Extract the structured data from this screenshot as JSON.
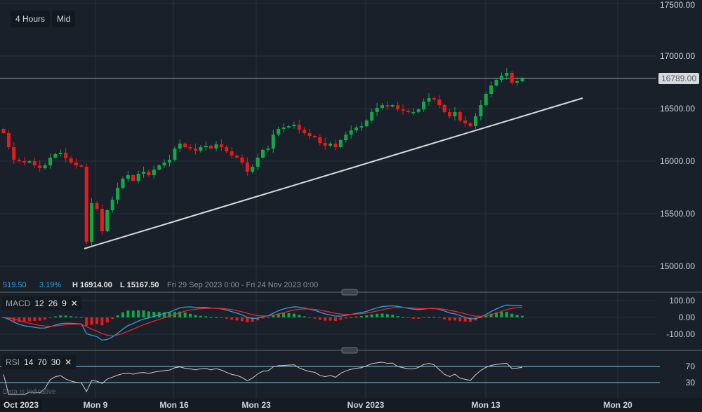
{
  "toolbar": {
    "timeframe": "4 Hours",
    "price_type": "Mid"
  },
  "info_bar": {
    "change": "519.50",
    "change_pct": "3.19%",
    "high": "H 16914.00",
    "low": "L 15167.50",
    "range": "Fri 29 Sep 2023 0:00 - Fri 24 Nov 2023 0:00"
  },
  "colors": {
    "up": "#12a84a",
    "down": "#ea1a1a",
    "macd_line": "#2f9fd8",
    "signal_line": "#e8262e",
    "rsi_line": "#c9cdd1",
    "trendline": "#d8dadd",
    "background": "#19202a"
  },
  "current_price": "16789.00",
  "macd": {
    "label": "MACD",
    "fast": "12",
    "slow": "26",
    "signal": "9"
  },
  "rsi": {
    "label": "RSI",
    "period": "14",
    "upper": "70",
    "lower": "30"
  },
  "footer_note": "Data is indicative",
  "chart_data": {
    "type": "candlestick",
    "price_axis": {
      "ticks": [
        "17500.00",
        "17000.00",
        "16500.00",
        "16000.00",
        "15500.00",
        "15000.00"
      ],
      "range": [
        14820,
        17550
      ]
    },
    "macd_axis": {
      "ticks": [
        "100.00",
        "0.00",
        "-100.00"
      ]
    },
    "rsi_axis": {
      "ticks": [
        "70",
        "30"
      ]
    },
    "x_ticks": [
      "Oct 2023",
      "Mon 9",
      "Mon 16",
      "Mon 23",
      "Nov 2023",
      "Mon 13",
      "Mon 20"
    ],
    "trendline": {
      "from": 15167.5,
      "to": 16600
    },
    "closes": [
      16267,
      16133,
      16013,
      16000,
      15987,
      16000,
      15960,
      15933,
      15960,
      16033,
      16067,
      16080,
      16027,
      15987,
      15960,
      15947,
      15233,
      15600,
      15547,
      15333,
      15533,
      15633,
      15747,
      15833,
      15867,
      15813,
      15880,
      15900,
      15867,
      15920,
      15960,
      15987,
      16013,
      16120,
      16167,
      16133,
      16120,
      16100,
      16133,
      16147,
      16120,
      16160,
      16133,
      16093,
      16053,
      16033,
      15987,
      15900,
      15947,
      16033,
      16107,
      16120,
      16253,
      16307,
      16320,
      16333,
      16347,
      16300,
      16267,
      16240,
      16227,
      16173,
      16147,
      16167,
      16133,
      16200,
      16253,
      16293,
      16320,
      16333,
      16387,
      16467,
      16507,
      16533,
      16520,
      16533,
      16493,
      16480,
      16467,
      16467,
      16493,
      16567,
      16600,
      16587,
      16533,
      16467,
      16427,
      16467,
      16387,
      16360,
      16333,
      16427,
      16533,
      16640,
      16720,
      16773,
      16813,
      16840,
      16747,
      16760,
      16789
    ]
  }
}
